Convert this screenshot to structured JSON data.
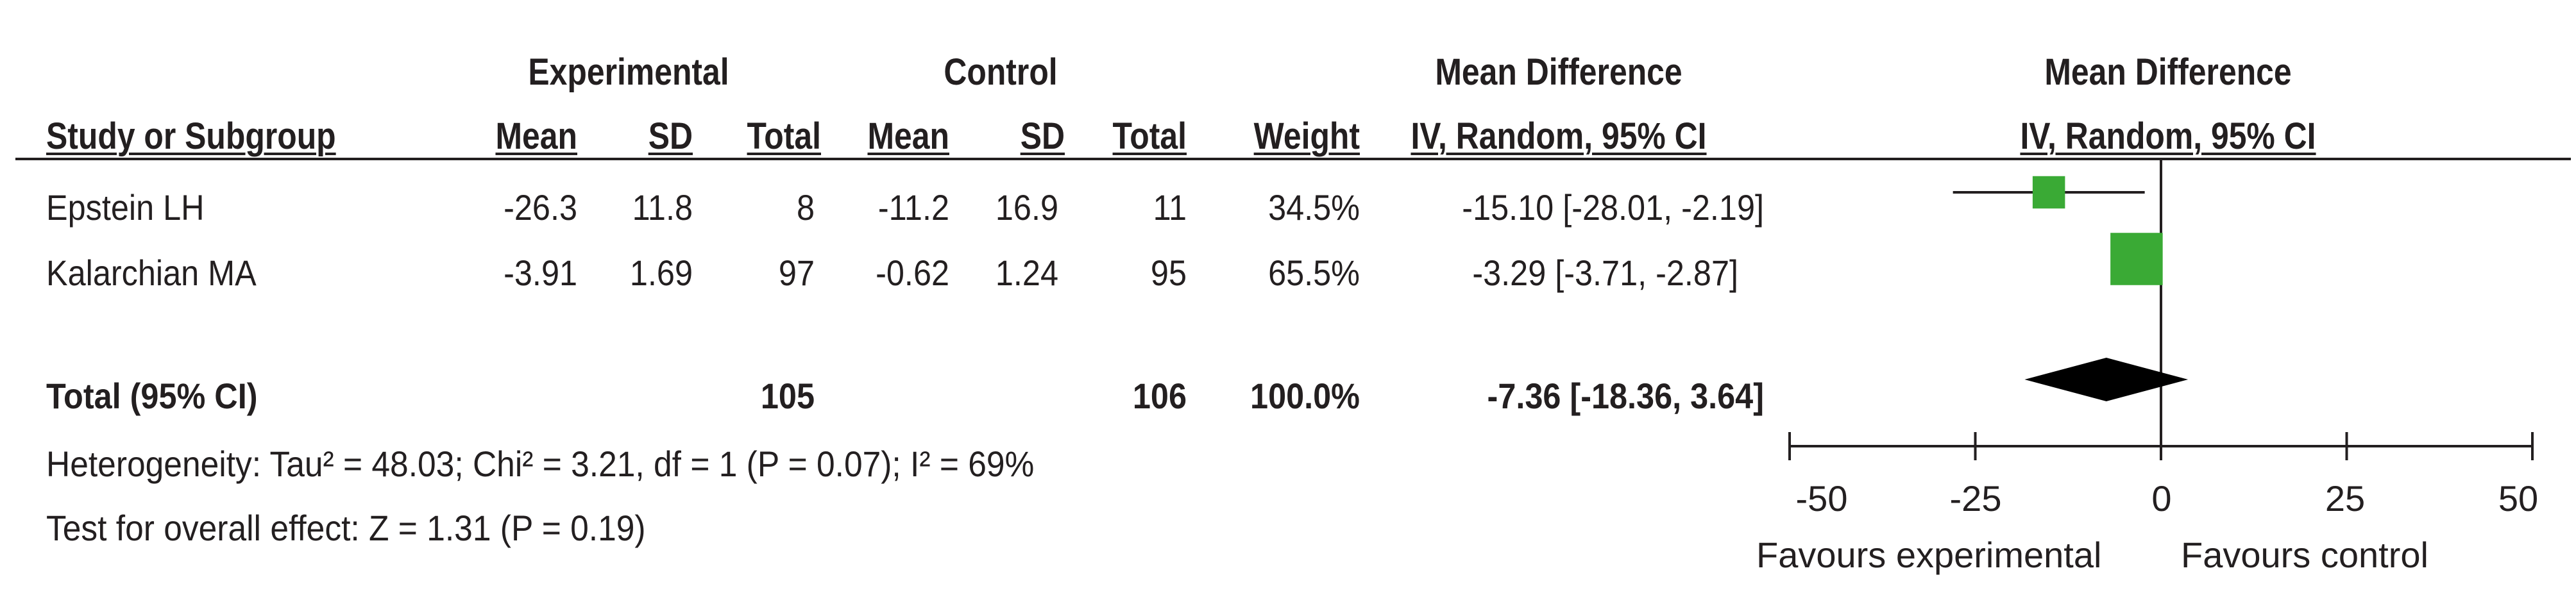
{
  "headers": {
    "experimental": "Experimental",
    "control": "Control",
    "md_top": "Mean Difference",
    "md_sub": "IV, Random, 95% CI",
    "plot_top": "Mean Difference",
    "plot_sub": "IV, Random, 95% CI",
    "study": "Study or Subgroup",
    "exp_mean": "Mean",
    "exp_sd": "SD",
    "exp_total": "Total",
    "ctl_mean": "Mean",
    "ctl_sd": "SD",
    "ctl_total": "Total",
    "weight": "Weight"
  },
  "rows": [
    {
      "study": "Epstein LH",
      "exp_mean": "-26.3",
      "exp_sd": "11.8",
      "exp_total": "8",
      "ctl_mean": "-11.2",
      "ctl_sd": "16.9",
      "ctl_total": "11",
      "weight": "34.5%",
      "ci_text": "-15.10 [-28.01, -2.19]"
    },
    {
      "study": "Kalarchian MA",
      "exp_mean": "-3.91",
      "exp_sd": "1.69",
      "exp_total": "97",
      "ctl_mean": "-0.62",
      "ctl_sd": "1.24",
      "ctl_total": "95",
      "weight": "65.5%",
      "ci_text": "-3.29 [-3.71, -2.87]"
    }
  ],
  "total": {
    "label": "Total (95% CI)",
    "exp_total": "105",
    "ctl_total": "106",
    "weight": "100.0%",
    "ci_text": "-7.36 [-18.36, 3.64]"
  },
  "footnotes": {
    "heterogeneity": "Heterogeneity: Tau² = 48.03; Chi² = 3.21, df = 1 (P = 0.07); I² = 69%",
    "overall": "Test for overall effect: Z = 1.31 (P = 0.19)"
  },
  "axis": {
    "ticks": [
      "-50",
      "-25",
      "0",
      "25",
      "50"
    ],
    "favours_left": "Favours experimental",
    "favours_right": "Favours control"
  },
  "chart_data": {
    "type": "scatter",
    "subtype": "forest",
    "xlim": [
      -50,
      50
    ],
    "xticks": [
      -50,
      -25,
      0,
      25,
      50
    ],
    "studies": [
      {
        "name": "Epstein LH",
        "estimate": -15.1,
        "lower": -28.01,
        "upper": -2.19,
        "weight": 34.5
      },
      {
        "name": "Kalarchian MA",
        "estimate": -3.29,
        "lower": -3.71,
        "upper": -2.87,
        "weight": 65.5
      }
    ],
    "pooled": {
      "estimate": -7.36,
      "lower": -18.36,
      "upper": 3.64
    },
    "colors": {
      "study_marker": "#3aaa35",
      "pooled": "#000000",
      "line": "#231f20"
    }
  }
}
